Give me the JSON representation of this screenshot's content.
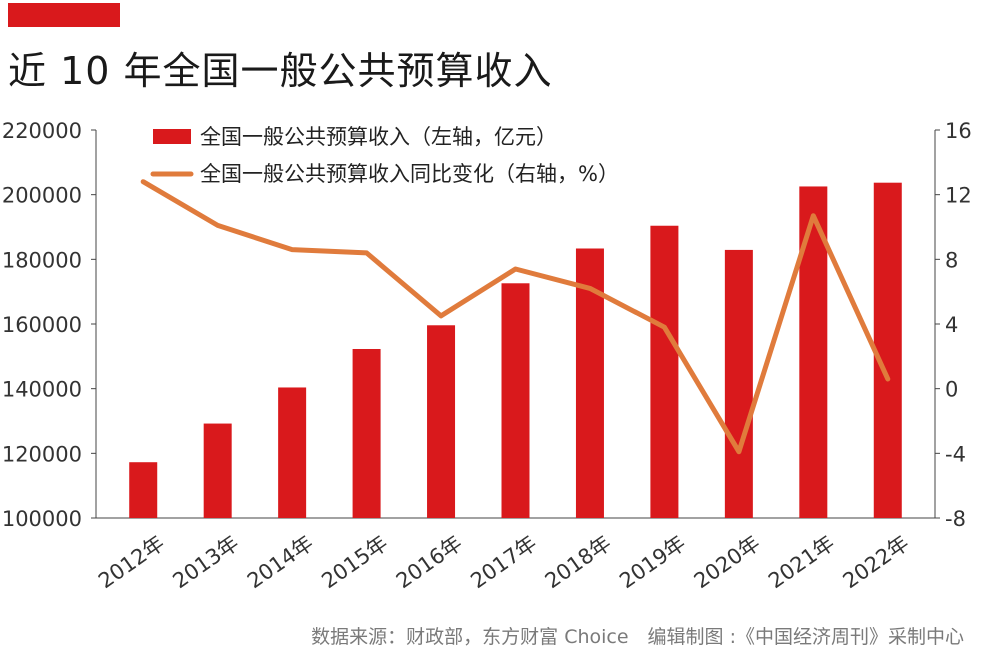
{
  "title": "近 10 年全国一般公共预算收入",
  "source": "数据来源：财政部，东方财富 Choice　编辑制图 :《中国经济周刊》采制中心",
  "colors": {
    "accent": "#d9191c",
    "bar": "#d9191c",
    "line": "#e07b3c"
  },
  "chart_data": {
    "type": "bar",
    "title": "近 10 年全国一般公共预算收入",
    "categories": [
      "2012年",
      "2013年",
      "2014年",
      "2015年",
      "2016年",
      "2017年",
      "2018年",
      "2019年",
      "2020年",
      "2021年",
      "2022年"
    ],
    "series": [
      {
        "name": "全国一般公共预算收入（左轴，亿元）",
        "type": "bar",
        "axis": "left",
        "values": [
          117254,
          129210,
          140370,
          152269,
          159605,
          172593,
          183352,
          190390,
          182914,
          202539,
          203703
        ]
      },
      {
        "name": "全国一般公共预算收入同比变化（右轴，%）",
        "type": "line",
        "axis": "right",
        "values": [
          12.8,
          10.1,
          8.6,
          8.4,
          4.5,
          7.4,
          6.2,
          3.8,
          -3.9,
          10.7,
          0.6
        ]
      }
    ],
    "y_left": {
      "min": 100000,
      "max": 220000,
      "ticks": [
        "100000",
        "120000",
        "140000",
        "160000",
        "180000",
        "200000",
        "220000"
      ]
    },
    "y_right": {
      "min": -8,
      "max": 16,
      "ticks": [
        "-8",
        "-4",
        "0",
        "4",
        "8",
        "12",
        "16"
      ]
    },
    "legend_position": "top-left",
    "grid": false
  }
}
